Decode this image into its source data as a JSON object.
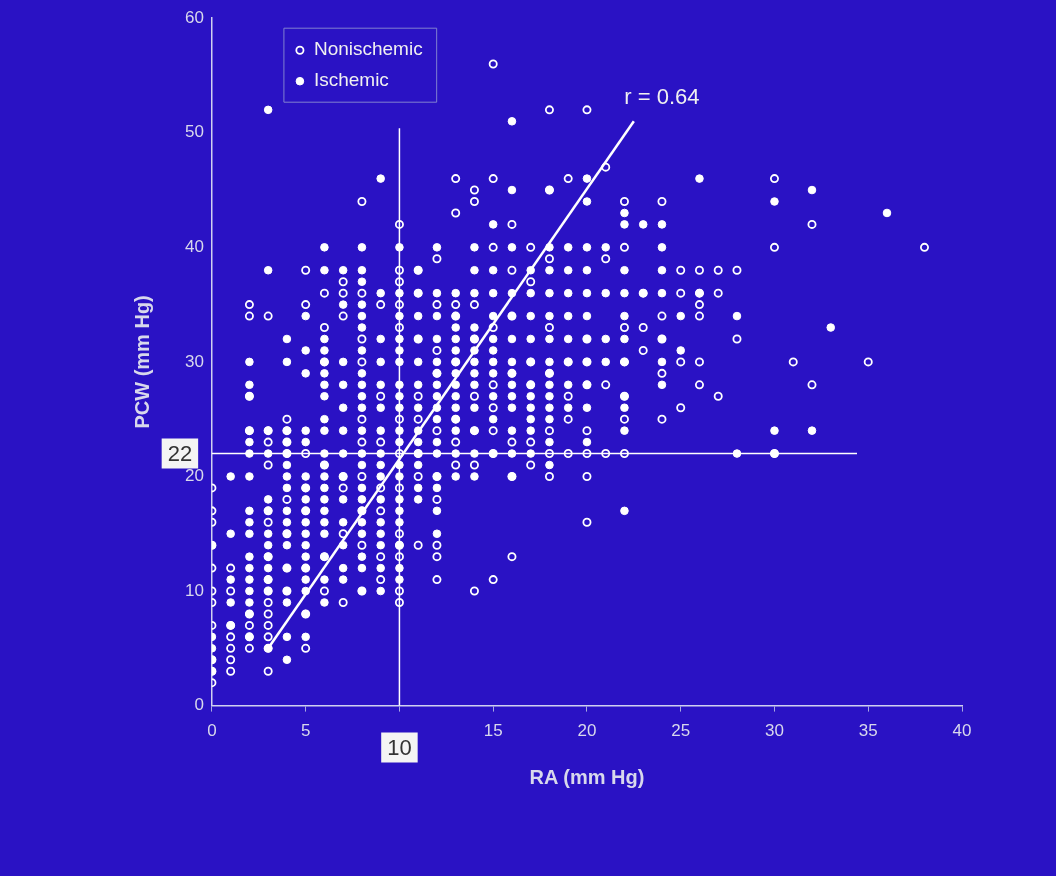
{
  "chart_data": {
    "type": "scatter",
    "xlabel": "RA (mm Hg)",
    "ylabel": "PCW (mm Hg)",
    "xlim": [
      0,
      40
    ],
    "xticks": [
      0,
      5,
      {
        "value": 10,
        "label": null
      },
      15,
      20,
      25,
      30,
      35,
      40
    ],
    "ylim": [
      0,
      60
    ],
    "yticks": [
      0,
      10,
      20,
      30,
      40,
      50,
      60
    ],
    "grid": false,
    "legend": "top left",
    "marker": "circle",
    "ref_lines": [
      {
        "axis": "y",
        "value": 22,
        "label": "22",
        "color": "#ffffff"
      },
      {
        "axis": "x",
        "value": 10,
        "label": "10",
        "color": "#ffffff"
      }
    ],
    "annotations": [
      "r = 0.64"
    ],
    "series": [
      {
        "name": "Nonischemic",
        "color": "#ffffff",
        "x": [
          0,
          0,
          0,
          0,
          0,
          0,
          0,
          0,
          0,
          0,
          0,
          1,
          1,
          1,
          1,
          1,
          1,
          1,
          2,
          2,
          2,
          2,
          2,
          2,
          2,
          2,
          3,
          3,
          3,
          3,
          3,
          3,
          3,
          3,
          3,
          3,
          3,
          3,
          3,
          3,
          3,
          4,
          4,
          4,
          4,
          4,
          4,
          4,
          4,
          5,
          5,
          5,
          5,
          5,
          5,
          5,
          5,
          6,
          6,
          6,
          6,
          6,
          6,
          7,
          7,
          7,
          7,
          7,
          7,
          7,
          8,
          8,
          8,
          8,
          8,
          8,
          8,
          8,
          8,
          8,
          9,
          9,
          9,
          9,
          9,
          9,
          9,
          10,
          10,
          10,
          10,
          10,
          10,
          10,
          10,
          10,
          10,
          10,
          10,
          10,
          11,
          11,
          11,
          11,
          11,
          11,
          11,
          11,
          12,
          12,
          12,
          12,
          12,
          12,
          12,
          12,
          12,
          12,
          13,
          13,
          13,
          13,
          13,
          13,
          13,
          13,
          14,
          14,
          14,
          14,
          14,
          14,
          14,
          14,
          15,
          15,
          15,
          15,
          15,
          15,
          15,
          15,
          15,
          16,
          16,
          16,
          16,
          16,
          16,
          16,
          17,
          17,
          17,
          17,
          17,
          17,
          18,
          18,
          18,
          18,
          18,
          18,
          18,
          18,
          19,
          19,
          19,
          19,
          19,
          20,
          20,
          20,
          20,
          20,
          20,
          20,
          20,
          21,
          21,
          21,
          21,
          22,
          22,
          22,
          22,
          22,
          22,
          22,
          23,
          23,
          23,
          24,
          24,
          24,
          24,
          24,
          25,
          25,
          25,
          25,
          26,
          26,
          26,
          26,
          26,
          26,
          27,
          27,
          27,
          28,
          28,
          30,
          30,
          30,
          31,
          32,
          32,
          35,
          38
        ],
        "values": [
          2,
          3,
          4,
          7,
          9,
          10,
          12,
          14,
          16,
          17,
          19,
          3,
          4,
          5,
          6,
          7,
          10,
          12,
          5,
          6,
          7,
          8,
          24,
          27,
          34,
          35,
          3,
          5,
          6,
          7,
          8,
          9,
          10,
          11,
          13,
          16,
          17,
          21,
          23,
          24,
          34,
          10,
          12,
          15,
          18,
          22,
          23,
          24,
          25,
          5,
          8,
          12,
          17,
          19,
          22,
          35,
          38,
          10,
          13,
          21,
          30,
          33,
          36,
          9,
          15,
          19,
          20,
          34,
          36,
          37,
          10,
          14,
          17,
          20,
          23,
          25,
          30,
          32,
          36,
          44,
          11,
          13,
          17,
          19,
          23,
          27,
          35,
          9,
          10,
          13,
          14,
          15,
          19,
          22,
          25,
          33,
          35,
          37,
          38,
          42,
          14,
          20,
          22,
          25,
          27,
          32,
          36,
          38,
          11,
          13,
          14,
          18,
          20,
          24,
          29,
          31,
          35,
          39,
          21,
          23,
          25,
          30,
          34,
          35,
          43,
          46,
          10,
          21,
          24,
          27,
          32,
          35,
          44,
          45,
          11,
          22,
          24,
          26,
          28,
          33,
          40,
          46,
          56,
          13,
          20,
          23,
          29,
          34,
          38,
          42,
          21,
          23,
          28,
          30,
          37,
          40,
          20,
          22,
          24,
          29,
          33,
          39,
          45,
          52,
          22,
          25,
          27,
          30,
          46,
          16,
          20,
          22,
          24,
          28,
          30,
          32,
          52,
          22,
          28,
          39,
          47,
          22,
          25,
          27,
          30,
          33,
          40,
          44,
          31,
          33,
          36,
          25,
          29,
          32,
          34,
          44,
          26,
          30,
          36,
          38,
          28,
          30,
          34,
          35,
          36,
          38,
          27,
          36,
          38,
          32,
          38,
          22,
          40,
          46,
          30,
          28,
          42,
          30,
          40
        ]
      },
      {
        "name": "Ischemic",
        "color": "#ffffff",
        "x": [
          0,
          0,
          0,
          0,
          0,
          1,
          1,
          1,
          1,
          1,
          2,
          2,
          2,
          2,
          2,
          2,
          2,
          2,
          2,
          2,
          2,
          2,
          2,
          2,
          2,
          2,
          2,
          3,
          3,
          3,
          3,
          3,
          3,
          3,
          3,
          3,
          3,
          3,
          3,
          3,
          4,
          4,
          4,
          4,
          4,
          4,
          4,
          4,
          4,
          4,
          4,
          4,
          4,
          4,
          4,
          4,
          4,
          5,
          5,
          5,
          5,
          5,
          5,
          5,
          5,
          5,
          5,
          5,
          5,
          5,
          5,
          5,
          5,
          5,
          5,
          6,
          6,
          6,
          6,
          6,
          6,
          6,
          6,
          6,
          6,
          6,
          6,
          6,
          6,
          6,
          6,
          6,
          6,
          6,
          6,
          6,
          7,
          7,
          7,
          7,
          7,
          7,
          7,
          7,
          7,
          7,
          7,
          7,
          7,
          8,
          8,
          8,
          8,
          8,
          8,
          8,
          8,
          8,
          8,
          8,
          8,
          8,
          8,
          8,
          8,
          8,
          8,
          8,
          8,
          8,
          8,
          9,
          9,
          9,
          9,
          9,
          9,
          9,
          9,
          9,
          9,
          9,
          9,
          9,
          9,
          9,
          9,
          10,
          10,
          10,
          10,
          10,
          10,
          10,
          10,
          10,
          10,
          10,
          10,
          10,
          10,
          10,
          10,
          10,
          10,
          10,
          11,
          11,
          11,
          11,
          11,
          11,
          11,
          11,
          11,
          11,
          11,
          11,
          11,
          12,
          12,
          12,
          12,
          12,
          12,
          12,
          12,
          12,
          12,
          12,
          12,
          12,
          12,
          12,
          12,
          13,
          13,
          13,
          13,
          13,
          13,
          13,
          13,
          13,
          13,
          13,
          13,
          13,
          13,
          14,
          14,
          14,
          14,
          14,
          14,
          14,
          14,
          14,
          14,
          14,
          14,
          14,
          15,
          15,
          15,
          15,
          15,
          15,
          15,
          15,
          15,
          15,
          15,
          16,
          16,
          16,
          16,
          16,
          16,
          16,
          16,
          16,
          16,
          16,
          16,
          16,
          16,
          17,
          17,
          17,
          17,
          17,
          17,
          17,
          17,
          17,
          17,
          17,
          18,
          18,
          18,
          18,
          18,
          18,
          18,
          18,
          18,
          18,
          18,
          18,
          18,
          18,
          19,
          19,
          19,
          19,
          19,
          19,
          19,
          19,
          20,
          20,
          20,
          20,
          20,
          20,
          20,
          20,
          20,
          20,
          20,
          21,
          21,
          21,
          21,
          22,
          22,
          22,
          22,
          22,
          22,
          22,
          22,
          22,
          22,
          22,
          23,
          23,
          24,
          24,
          24,
          24,
          24,
          24,
          24,
          25,
          25,
          26,
          26,
          28,
          28,
          30,
          30,
          30,
          32,
          32,
          33,
          36
        ],
        "values": [
          3,
          4,
          5,
          6,
          14,
          7,
          9,
          11,
          15,
          20,
          6,
          8,
          9,
          10,
          11,
          12,
          13,
          15,
          16,
          17,
          20,
          22,
          23,
          24,
          27,
          28,
          30,
          5,
          10,
          11,
          12,
          13,
          14,
          15,
          17,
          18,
          22,
          24,
          38,
          52,
          4,
          6,
          9,
          10,
          12,
          14,
          15,
          16,
          17,
          19,
          20,
          21,
          22,
          23,
          24,
          30,
          32,
          6,
          8,
          10,
          11,
          12,
          13,
          14,
          15,
          16,
          17,
          18,
          19,
          20,
          23,
          24,
          29,
          31,
          34,
          9,
          11,
          13,
          15,
          16,
          17,
          18,
          19,
          20,
          21,
          22,
          24,
          25,
          27,
          28,
          29,
          30,
          31,
          32,
          38,
          40,
          11,
          12,
          14,
          16,
          18,
          20,
          22,
          24,
          26,
          28,
          30,
          35,
          38,
          10,
          12,
          13,
          15,
          16,
          17,
          18,
          19,
          21,
          22,
          24,
          26,
          27,
          28,
          29,
          31,
          33,
          34,
          35,
          37,
          38,
          40,
          10,
          12,
          14,
          15,
          16,
          18,
          20,
          21,
          22,
          24,
          26,
          28,
          30,
          32,
          36,
          46,
          11,
          12,
          14,
          16,
          17,
          18,
          20,
          21,
          23,
          24,
          26,
          27,
          28,
          30,
          31,
          32,
          34,
          36,
          40,
          18,
          19,
          21,
          22,
          23,
          24,
          26,
          28,
          30,
          32,
          34,
          36,
          38,
          15,
          17,
          19,
          20,
          22,
          23,
          25,
          26,
          27,
          28,
          29,
          30,
          32,
          34,
          36,
          40,
          20,
          22,
          24,
          25,
          26,
          27,
          28,
          29,
          30,
          31,
          32,
          33,
          34,
          36,
          20,
          22,
          24,
          26,
          28,
          29,
          30,
          31,
          32,
          33,
          36,
          38,
          40,
          22,
          25,
          27,
          29,
          30,
          31,
          32,
          34,
          36,
          38,
          42,
          20,
          22,
          24,
          26,
          27,
          28,
          29,
          30,
          32,
          34,
          36,
          40,
          45,
          51,
          22,
          24,
          25,
          26,
          27,
          28,
          30,
          32,
          34,
          36,
          38,
          21,
          23,
          25,
          26,
          27,
          28,
          29,
          30,
          32,
          34,
          36,
          38,
          40,
          45,
          26,
          28,
          30,
          32,
          34,
          36,
          38,
          40,
          23,
          26,
          28,
          30,
          32,
          34,
          36,
          38,
          40,
          44,
          46,
          30,
          32,
          36,
          40,
          17,
          24,
          26,
          27,
          30,
          32,
          34,
          36,
          38,
          42,
          43,
          36,
          42,
          28,
          30,
          32,
          36,
          38,
          40,
          42,
          31,
          34,
          36,
          46,
          22,
          34,
          22,
          24,
          44,
          24,
          45,
          33,
          43
        ]
      },
      {
        "type": "line",
        "marker": "none",
        "color": "#ffffff",
        "x": [
          3,
          22.5
        ],
        "values": [
          5,
          51
        ]
      }
    ]
  }
}
